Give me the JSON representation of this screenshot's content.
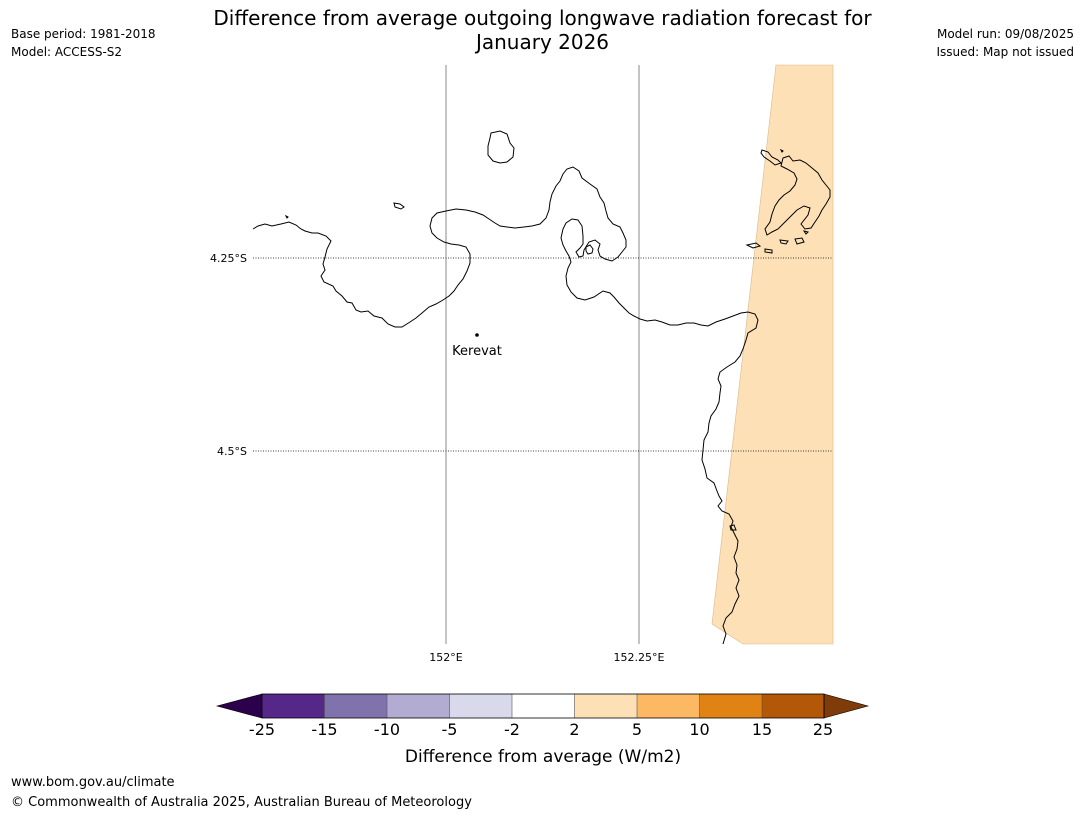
{
  "title": {
    "line1": "Difference from average outgoing longwave radiation forecast for",
    "line2": "January 2026"
  },
  "meta_left": {
    "base_period": "Base period: 1981-2018",
    "model": "Model: ACCESS-S2"
  },
  "meta_right": {
    "model_run": "Model run: 09/08/2025",
    "issued": "Issued: Map not issued"
  },
  "map": {
    "lon_labels": [
      "152°E",
      "152.25°E"
    ],
    "lat_labels": [
      "4.25°S",
      "4.5°S"
    ],
    "place": "Kerevat",
    "anomaly_fill_color": "#fde0b6",
    "coastline_color": "#000000"
  },
  "colorbar": {
    "ticks": [
      "-25",
      "-15",
      "-10",
      "-5",
      "-2",
      "2",
      "5",
      "10",
      "15",
      "25"
    ],
    "colors": [
      "#2d004b",
      "#542788",
      "#8073ac",
      "#b2abd2",
      "#d8daeb",
      "#ffffff",
      "#fee0b6",
      "#fdb863",
      "#e08214",
      "#b35806",
      "#7f3b08"
    ],
    "label": "Difference from average (W/m2)"
  },
  "footer": {
    "url": "www.bom.gov.au/climate",
    "copyright": "© Commonwealth of Australia 2025, Australian Bureau of Meteorology"
  }
}
